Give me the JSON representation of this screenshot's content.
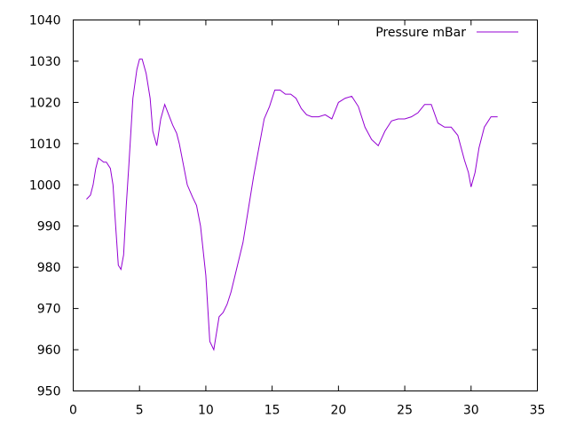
{
  "chart_data": {
    "type": "line",
    "title": "",
    "xlabel": "",
    "ylabel": "",
    "xlim": [
      0,
      35
    ],
    "ylim": [
      950,
      1040
    ],
    "x_ticks": [
      "0",
      "5",
      "10",
      "15",
      "20",
      "25",
      "30",
      "35"
    ],
    "y_ticks": [
      "950",
      "960",
      "970",
      "980",
      "990",
      "1000",
      "1010",
      "1020",
      "1030",
      "1040"
    ],
    "grid": false,
    "legend_position": "top-right",
    "series": [
      {
        "name": "Pressure mBar",
        "color": "#9400d3",
        "x": [
          1.0,
          1.3,
          1.5,
          1.7,
          1.9,
          2.1,
          2.3,
          2.5,
          2.8,
          3.0,
          3.2,
          3.4,
          3.6,
          3.8,
          4.0,
          4.2,
          4.5,
          4.8,
          5.0,
          5.2,
          5.5,
          5.8,
          6.0,
          6.3,
          6.6,
          6.9,
          7.2,
          7.5,
          7.8,
          8.0,
          8.3,
          8.6,
          9.0,
          9.3,
          9.6,
          10.0,
          10.3,
          10.6,
          11.0,
          11.3,
          11.6,
          11.9,
          12.2,
          12.5,
          12.8,
          13.2,
          13.6,
          14.0,
          14.4,
          14.8,
          15.2,
          15.6,
          16.0,
          16.4,
          16.8,
          17.2,
          17.6,
          18.0,
          18.5,
          19.0,
          19.5,
          20.0,
          20.5,
          21.0,
          21.5,
          22.0,
          22.5,
          23.0,
          23.5,
          24.0,
          24.5,
          25.0,
          25.5,
          26.0,
          26.5,
          27.0,
          27.5,
          28.0,
          28.5,
          29.0,
          29.5,
          29.8,
          30.0,
          30.3,
          30.6,
          31.0,
          31.5,
          32.0
        ],
        "y": [
          996.5,
          997.5,
          1000,
          1004,
          1006.5,
          1006,
          1005.5,
          1005.5,
          1004,
          1000,
          990,
          980.5,
          979.5,
          983,
          995,
          1005,
          1021,
          1028,
          1030.5,
          1030.5,
          1027,
          1021,
          1013,
          1009.5,
          1016,
          1019.5,
          1017,
          1014.5,
          1012.5,
          1010,
          1005,
          1000,
          997,
          995,
          990,
          978,
          962,
          960,
          968,
          969,
          971,
          974,
          978,
          982,
          986,
          994,
          1002,
          1009,
          1016,
          1019,
          1023,
          1023,
          1022,
          1022,
          1021,
          1018.5,
          1017,
          1016.5,
          1016.5,
          1017,
          1016,
          1020,
          1021,
          1021.5,
          1019,
          1014,
          1011,
          1009.5,
          1013,
          1015.5,
          1016,
          1016,
          1016.5,
          1017.5,
          1019.5,
          1019.5,
          1015,
          1014,
          1014,
          1012,
          1006,
          1003,
          999.5,
          1003,
          1009,
          1014,
          1016.5,
          1016.5
        ]
      }
    ]
  }
}
